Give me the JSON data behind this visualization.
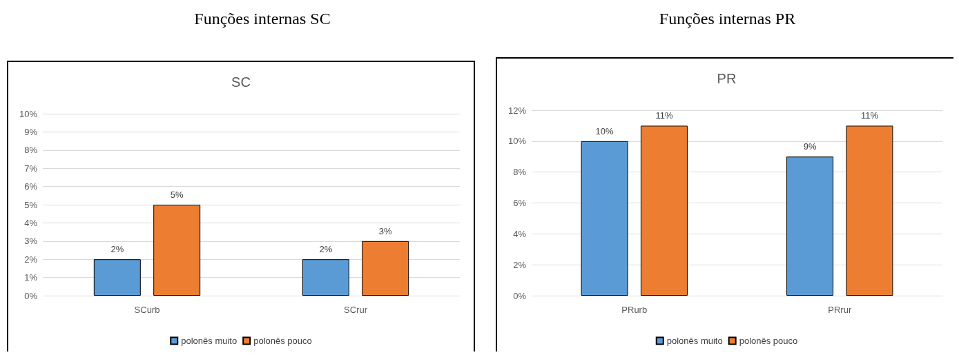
{
  "chart_data": [
    {
      "type": "bar",
      "title": "Funções internas SC",
      "subtitle": "SC",
      "categories": [
        "SCurb",
        "SCrur"
      ],
      "series": [
        {
          "name": "polonês muito",
          "color": "#5b9bd5",
          "values": [
            2,
            2
          ],
          "value_labels": [
            "2%",
            "2%"
          ]
        },
        {
          "name": "polonês pouco",
          "color": "#ed7d31",
          "values": [
            5,
            3
          ],
          "value_labels": [
            "5%",
            "3%"
          ]
        }
      ],
      "ylim": [
        0,
        10
      ],
      "yticks": [
        {
          "value": 0,
          "label": "0%"
        },
        {
          "value": 1,
          "label": "1%"
        },
        {
          "value": 2,
          "label": "2%"
        },
        {
          "value": 3,
          "label": "3%"
        },
        {
          "value": 4,
          "label": "4%"
        },
        {
          "value": 5,
          "label": "5%"
        },
        {
          "value": 6,
          "label": "6%"
        },
        {
          "value": 7,
          "label": "7%"
        },
        {
          "value": 8,
          "label": "8%"
        },
        {
          "value": 9,
          "label": "9%"
        },
        {
          "value": 10,
          "label": "10%"
        }
      ],
      "grid": "y",
      "legend": "bottom"
    },
    {
      "type": "bar",
      "title": "Funções internas PR",
      "subtitle": "PR",
      "categories": [
        "PRurb",
        "PRrur"
      ],
      "series": [
        {
          "name": "polonês muito",
          "color": "#5b9bd5",
          "values": [
            10,
            9
          ],
          "value_labels": [
            "10%",
            "9%"
          ]
        },
        {
          "name": "polonês pouco",
          "color": "#ed7d31",
          "values": [
            11,
            11
          ],
          "value_labels": [
            "11%",
            "11%"
          ]
        }
      ],
      "ylim": [
        0,
        12
      ],
      "yticks": [
        {
          "value": 0,
          "label": "0%"
        },
        {
          "value": 2,
          "label": "2%"
        },
        {
          "value": 4,
          "label": "4%"
        },
        {
          "value": 6,
          "label": "6%"
        },
        {
          "value": 8,
          "label": "8%"
        },
        {
          "value": 10,
          "label": "10%"
        },
        {
          "value": 12,
          "label": "12%"
        }
      ],
      "grid": "y",
      "legend": "bottom"
    }
  ]
}
